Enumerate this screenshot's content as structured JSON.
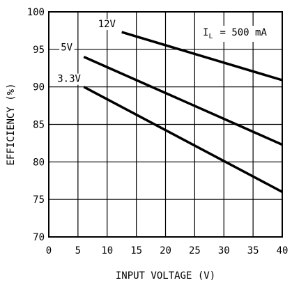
{
  "chart_data": {
    "type": "line",
    "xlabel": "INPUT VOLTAGE (V)",
    "ylabel": "EFFICIENCY (%)",
    "xlim": [
      0,
      40
    ],
    "ylim": [
      70,
      100
    ],
    "x_ticks": [
      0,
      5,
      10,
      15,
      20,
      25,
      30,
      35,
      40
    ],
    "y_ticks": [
      70,
      75,
      80,
      85,
      90,
      95,
      100
    ],
    "grid": true,
    "annotation": {
      "symbol": "I",
      "subscript": "L",
      "text": "= 500 mA"
    },
    "series": [
      {
        "name": "12V",
        "x": [
          12.5,
          40
        ],
        "y": [
          97.3,
          90.9
        ]
      },
      {
        "name": "5V",
        "x": [
          6,
          40
        ],
        "y": [
          94,
          82.3
        ]
      },
      {
        "name": "3.3V",
        "x": [
          6,
          40
        ],
        "y": [
          90,
          76
        ]
      }
    ]
  }
}
